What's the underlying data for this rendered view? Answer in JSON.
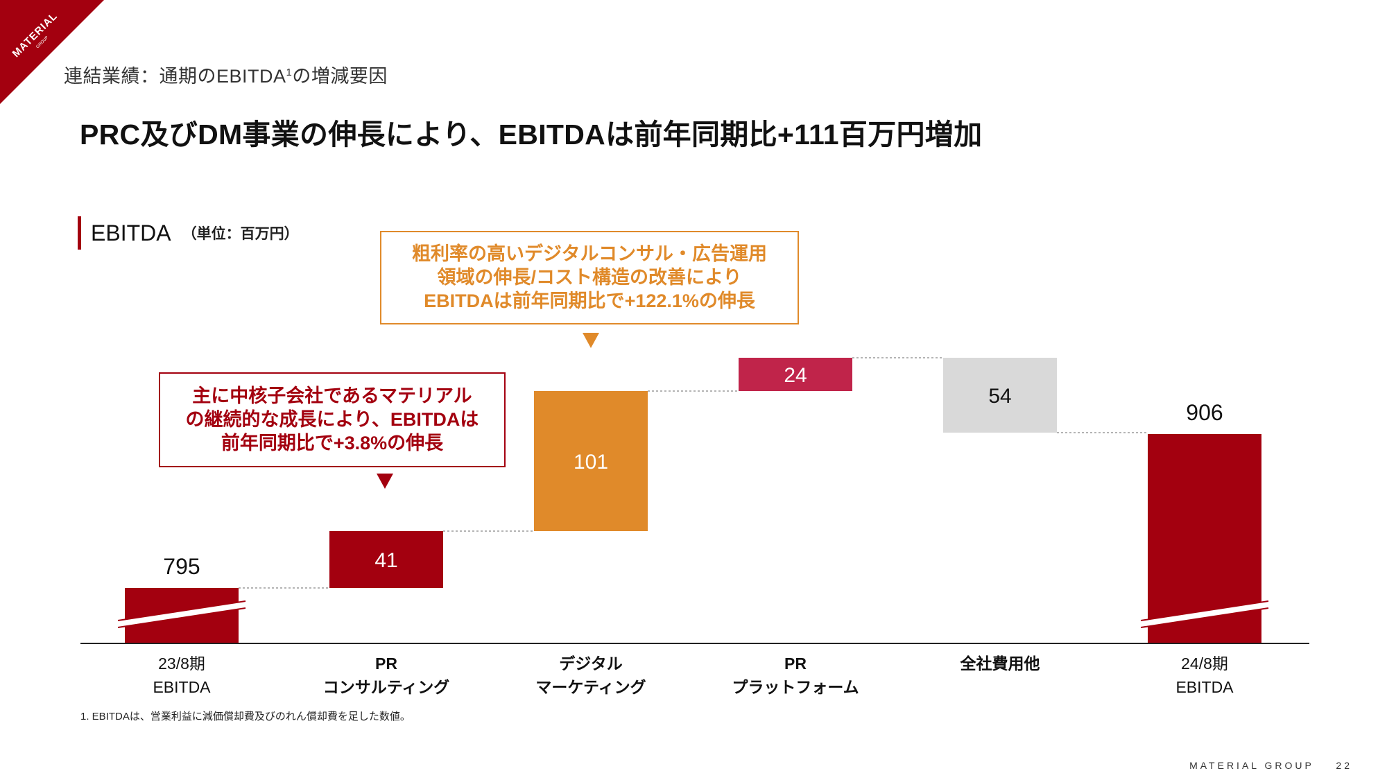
{
  "brand": {
    "corner_text": "MATERIAL",
    "corner_sub": "GROUP",
    "color": "#a3000f"
  },
  "breadcrumb": {
    "text": "連結業績：通期のEBITDA",
    "sup": "1",
    "suffix": "の増減要因"
  },
  "headline": "PRC及びDM事業の伸長により、EBITDAは前年同期比+111百万円増加",
  "chart_title": {
    "label": "EBITDA",
    "unit": "（単位：百万円）"
  },
  "callouts": {
    "orange": {
      "lines": [
        "粗利率の高いデジタルコンサル・広告運用",
        "領域の伸長/コスト構造の改善により",
        "EBITDAは前年同期比で+122.1%の伸長"
      ],
      "color": "#e08a2a"
    },
    "red": {
      "lines": [
        "主に中核子会社であるマテリアル",
        "の継続的な成長により、EBITDAは",
        "前年同期比で+3.8%の伸長"
      ],
      "color": "#a3000f"
    }
  },
  "chart_data": {
    "type": "bar",
    "subtype": "waterfall",
    "categories": [
      "23/8期 EBITDA",
      "PR コンサルティング",
      "デジタル マーケティング",
      "PR プラットフォーム",
      "全社費用他",
      "24/8期 EBITDA"
    ],
    "category_lines": [
      [
        "23/8期",
        "EBITDA"
      ],
      [
        "PR",
        "コンサルティング"
      ],
      [
        "デジタル",
        "マーケティング"
      ],
      [
        "PR",
        "プラットフォーム"
      ],
      [
        "全社費用他"
      ],
      [
        "24/8期",
        "EBITDA"
      ]
    ],
    "bold_categories": [
      false,
      true,
      true,
      true,
      true,
      false
    ],
    "values": [
      795,
      41,
      101,
      24,
      -54,
      906
    ],
    "labels": [
      "795",
      "41",
      "101",
      "24",
      "54",
      "906"
    ],
    "kinds": [
      "total",
      "delta",
      "delta",
      "delta",
      "delta",
      "total"
    ],
    "colors": [
      "#a3000f",
      "#a3000f",
      "#e08a2a",
      "#c0244a",
      "#d9d9d9",
      "#a3000f"
    ],
    "axis_broken": true,
    "grid": false
  },
  "footnote": "1. EBITDAは、営業利益に減価償却費及びのれん償却費を足した数値。",
  "footer": {
    "brand": "MATERIAL GROUP",
    "page": "22"
  }
}
